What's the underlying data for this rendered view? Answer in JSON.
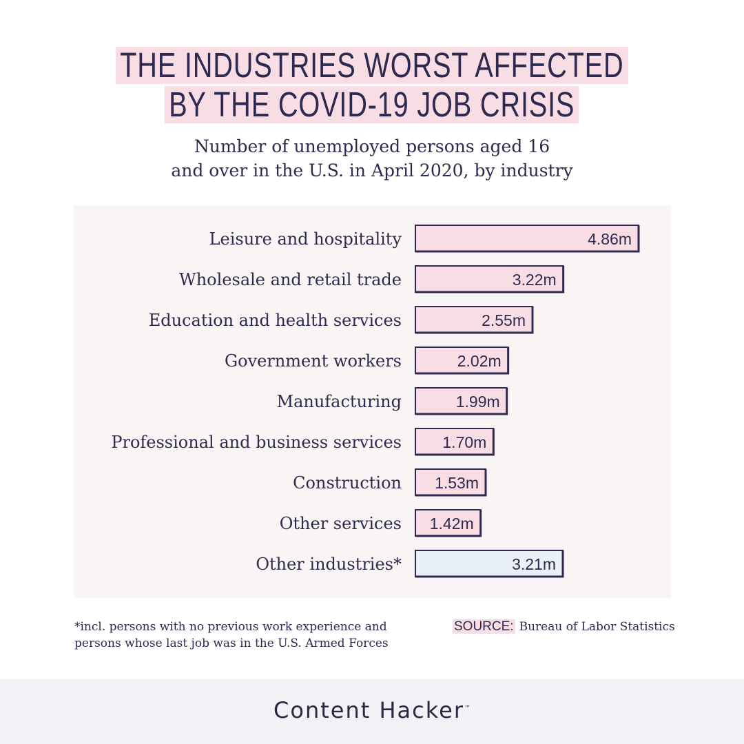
{
  "title": {
    "line1": "THE INDUSTRIES WORST AFFECTED",
    "line2": "BY THE COVID-19 JOB CRISIS"
  },
  "subtitle": {
    "line1": "Number of unemployed persons aged 16",
    "line2": "and over in the U.S. in April 2020, by industry"
  },
  "chart_data": {
    "type": "bar",
    "orientation": "horizontal",
    "title": "THE INDUSTRIES WORST AFFECTED BY THE COVID-19 JOB CRISIS",
    "subtitle": "Number of unemployed persons aged 16 and over in the U.S. in April 2020, by industry",
    "categories": [
      "Leisure and hospitality",
      "Wholesale and retail trade",
      "Education and health services",
      "Government workers",
      "Manufacturing",
      "Professional and business services",
      "Construction",
      "Other services",
      "Other industries*"
    ],
    "values": [
      4.86,
      3.22,
      2.55,
      2.02,
      1.99,
      1.7,
      1.53,
      1.42,
      3.21
    ],
    "value_labels": [
      "4.86m",
      "3.22m",
      "2.55m",
      "2.02m",
      "1.99m",
      "1.70m",
      "1.53m",
      "1.42m",
      "3.21m"
    ],
    "unit": "millions",
    "xlim": [
      0,
      5
    ],
    "colors": {
      "bar_fill": "#f8dde4",
      "bar_fill_other": "#eaf0f8",
      "bar_stroke": "#2e2a4f",
      "panel_bg": "#f9f5f4",
      "text": "#2e2a4f"
    },
    "grid": false,
    "legend": "none"
  },
  "footnote": {
    "line1": "*incl. persons with no previous work experience and",
    "line2": "persons whose last job was in the U.S. Armed Forces"
  },
  "source": {
    "label": "SOURCE:",
    "text": "Bureau of Labor Statistics"
  },
  "brand": {
    "name": "Content Hacker",
    "mark": "™"
  }
}
